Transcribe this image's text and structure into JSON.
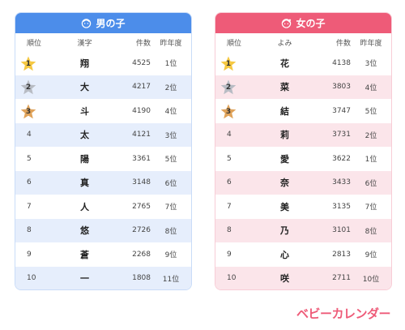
{
  "boys": {
    "title": "男の子",
    "headers": {
      "rank": "順位",
      "name": "漢字",
      "count": "件数",
      "last": "昨年度"
    },
    "rows": [
      {
        "rank": "1",
        "name": "翔",
        "count": "4525",
        "last": "1位"
      },
      {
        "rank": "2",
        "name": "大",
        "count": "4217",
        "last": "2位"
      },
      {
        "rank": "3",
        "name": "斗",
        "count": "4190",
        "last": "4位"
      },
      {
        "rank": "4",
        "name": "太",
        "count": "4121",
        "last": "3位"
      },
      {
        "rank": "5",
        "name": "陽",
        "count": "3361",
        "last": "5位"
      },
      {
        "rank": "6",
        "name": "真",
        "count": "3148",
        "last": "6位"
      },
      {
        "rank": "7",
        "name": "人",
        "count": "2765",
        "last": "7位"
      },
      {
        "rank": "8",
        "name": "悠",
        "count": "2726",
        "last": "8位"
      },
      {
        "rank": "9",
        "name": "蒼",
        "count": "2268",
        "last": "9位"
      },
      {
        "rank": "10",
        "name": "一",
        "count": "1808",
        "last": "11位"
      }
    ]
  },
  "girls": {
    "title": "女の子",
    "headers": {
      "rank": "順位",
      "name": "よみ",
      "count": "件数",
      "last": "昨年度"
    },
    "rows": [
      {
        "rank": "1",
        "name": "花",
        "count": "4138",
        "last": "3位"
      },
      {
        "rank": "2",
        "name": "菜",
        "count": "3803",
        "last": "4位"
      },
      {
        "rank": "3",
        "name": "結",
        "count": "3747",
        "last": "5位"
      },
      {
        "rank": "4",
        "name": "莉",
        "count": "3731",
        "last": "2位"
      },
      {
        "rank": "5",
        "name": "愛",
        "count": "3622",
        "last": "1位"
      },
      {
        "rank": "6",
        "name": "奈",
        "count": "3433",
        "last": "6位"
      },
      {
        "rank": "7",
        "name": "美",
        "count": "3135",
        "last": "7位"
      },
      {
        "rank": "8",
        "name": "乃",
        "count": "3101",
        "last": "8位"
      },
      {
        "rank": "9",
        "name": "心",
        "count": "2813",
        "last": "9位"
      },
      {
        "rank": "10",
        "name": "咲",
        "count": "2711",
        "last": "10位"
      }
    ]
  },
  "medal_colors": {
    "1": "#f5c842",
    "2": "#b8bcc4",
    "3": "#e0a35a"
  },
  "logo": "ベビーカレンダー"
}
